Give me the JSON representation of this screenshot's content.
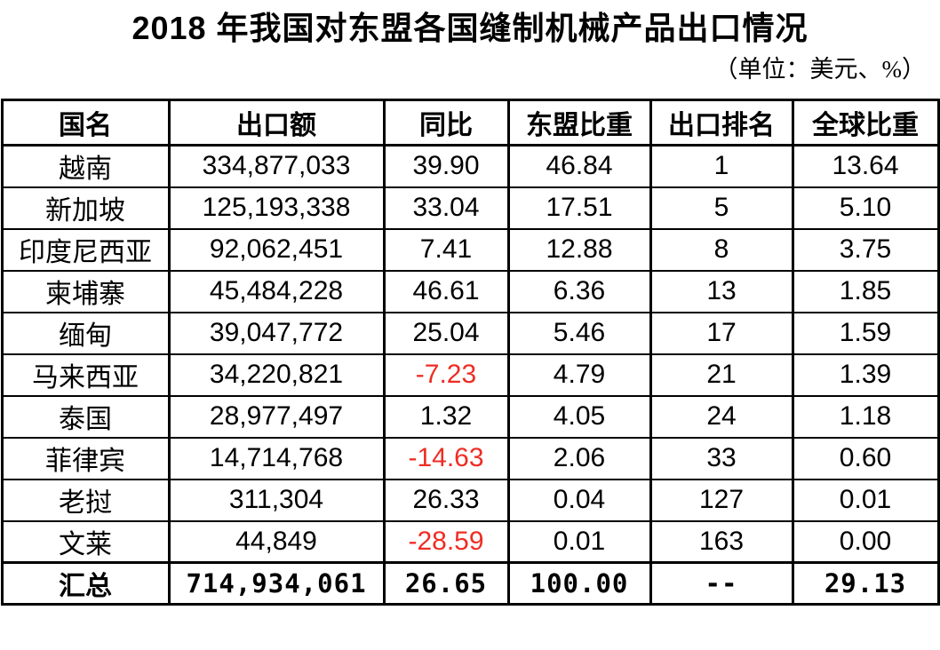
{
  "title": "2018 年我国对东盟各国缝制机械产品出口情况",
  "unit_note": "（单位：美元、%）",
  "colors": {
    "negative": "#ee2d24",
    "text": "#000000",
    "background": "#ffffff",
    "border": "#000000"
  },
  "chart_data": {
    "type": "table",
    "title": "2018 年我国对东盟各国缝制机械产品出口情况",
    "unit": "美元、%",
    "columns": [
      "国名",
      "出口额",
      "同比",
      "东盟比重",
      "出口排名",
      "全球比重"
    ],
    "rows": [
      {
        "country": "越南",
        "export_value": "334,877,033",
        "yoy": "39.90",
        "yoy_negative": false,
        "asean_share": "46.84",
        "export_rank": "1",
        "global_share": "13.64",
        "is_total": false
      },
      {
        "country": "新加坡",
        "export_value": "125,193,338",
        "yoy": "33.04",
        "yoy_negative": false,
        "asean_share": "17.51",
        "export_rank": "5",
        "global_share": "5.10",
        "is_total": false
      },
      {
        "country": "印度尼西亚",
        "export_value": "92,062,451",
        "yoy": "7.41",
        "yoy_negative": false,
        "asean_share": "12.88",
        "export_rank": "8",
        "global_share": "3.75",
        "is_total": false
      },
      {
        "country": "柬埔寨",
        "export_value": "45,484,228",
        "yoy": "46.61",
        "yoy_negative": false,
        "asean_share": "6.36",
        "export_rank": "13",
        "global_share": "1.85",
        "is_total": false
      },
      {
        "country": "缅甸",
        "export_value": "39,047,772",
        "yoy": "25.04",
        "yoy_negative": false,
        "asean_share": "5.46",
        "export_rank": "17",
        "global_share": "1.59",
        "is_total": false
      },
      {
        "country": "马来西亚",
        "export_value": "34,220,821",
        "yoy": "-7.23",
        "yoy_negative": true,
        "asean_share": "4.79",
        "export_rank": "21",
        "global_share": "1.39",
        "is_total": false
      },
      {
        "country": "泰国",
        "export_value": "28,977,497",
        "yoy": "1.32",
        "yoy_negative": false,
        "asean_share": "4.05",
        "export_rank": "24",
        "global_share": "1.18",
        "is_total": false
      },
      {
        "country": "菲律宾",
        "export_value": "14,714,768",
        "yoy": "-14.63",
        "yoy_negative": true,
        "asean_share": "2.06",
        "export_rank": "33",
        "global_share": "0.60",
        "is_total": false
      },
      {
        "country": "老挝",
        "export_value": "311,304",
        "yoy": "26.33",
        "yoy_negative": false,
        "asean_share": "0.04",
        "export_rank": "127",
        "global_share": "0.01",
        "is_total": false
      },
      {
        "country": "文莱",
        "export_value": "44,849",
        "yoy": "-28.59",
        "yoy_negative": true,
        "asean_share": "0.01",
        "export_rank": "163",
        "global_share": "0.00",
        "is_total": false
      },
      {
        "country": "汇总",
        "export_value": "714,934,061",
        "yoy": "26.65",
        "yoy_negative": false,
        "asean_share": "100.00",
        "export_rank": "--",
        "global_share": "29.13",
        "is_total": true
      }
    ]
  }
}
